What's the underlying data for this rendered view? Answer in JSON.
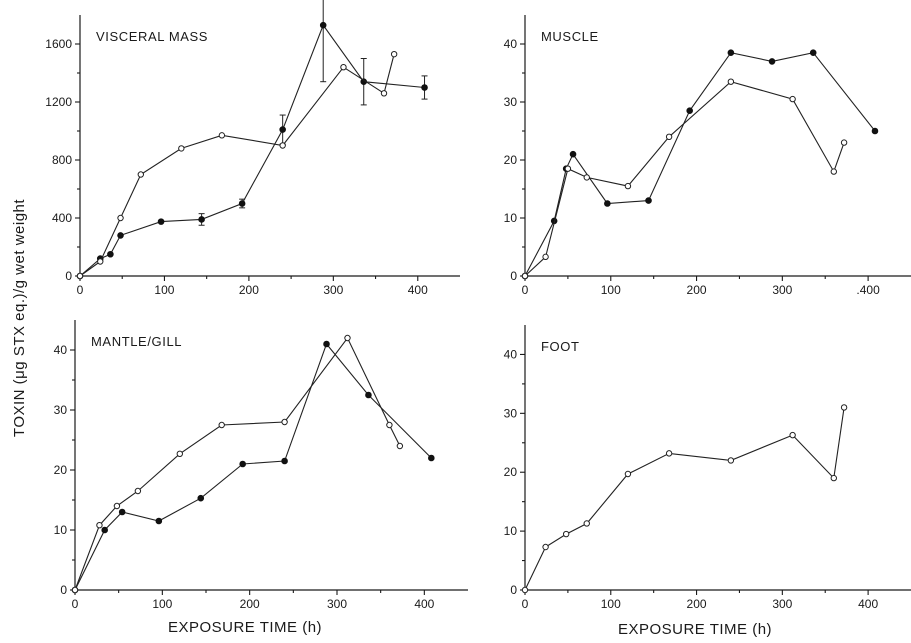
{
  "figure": {
    "ylabel": "TOXIN (μg STX eq.)/g wet weight",
    "xlabel_left": "EXPOSURE TIME (h)",
    "xlabel_right": "EXPOSURE TIME (h)"
  },
  "chart_data": [
    {
      "type": "line",
      "title": "VISCERAL MASS",
      "xlabel": "EXPOSURE TIME (h)",
      "ylabel": "TOXIN (μg STX eq.)/g wet weight",
      "xlim": [
        0,
        450
      ],
      "ylim": [
        0,
        1800
      ],
      "xticks": [
        0,
        100,
        200,
        300,
        400
      ],
      "xtick_labels": [
        "0",
        "100",
        "200",
        "300",
        "400"
      ],
      "yticks": [
        0,
        400,
        800,
        1200,
        1600
      ],
      "ytick_labels": [
        "0",
        "400",
        "800",
        "1200",
        "1600"
      ],
      "series": [
        {
          "marker": "filled",
          "x": [
            0,
            24,
            36,
            48,
            96,
            144,
            192,
            240,
            288,
            336,
            408
          ],
          "y": [
            0,
            120,
            150,
            280,
            375,
            390,
            500,
            1010,
            1730,
            1340,
            1300
          ],
          "err": [
            0,
            0,
            0,
            0,
            0,
            40,
            30,
            100,
            390,
            160,
            80
          ]
        },
        {
          "marker": "open",
          "x": [
            0,
            24,
            48,
            72,
            120,
            168,
            240,
            312,
            360,
            372
          ],
          "y": [
            0,
            100,
            400,
            700,
            880,
            970,
            900,
            1440,
            1260,
            1530
          ]
        }
      ]
    },
    {
      "type": "line",
      "title": "MUSCLE",
      "xlim": [
        0,
        450
      ],
      "ylim": [
        0,
        45
      ],
      "xticks": [
        0,
        100,
        200,
        300,
        400
      ],
      "xtick_labels": [
        "0",
        "100",
        "200",
        "300",
        ".400"
      ],
      "yticks": [
        0,
        10,
        20,
        30,
        40
      ],
      "ytick_labels": [
        "0",
        "10",
        "20",
        "30",
        "40"
      ],
      "series": [
        {
          "marker": "filled",
          "x": [
            0,
            34,
            48,
            56,
            96,
            144,
            192,
            240,
            288,
            336,
            408
          ],
          "y": [
            0,
            9.5,
            18.5,
            21,
            12.5,
            13,
            28.5,
            38.5,
            37,
            38.5,
            25
          ]
        },
        {
          "marker": "open",
          "x": [
            0,
            24,
            50,
            72,
            120,
            168,
            240,
            312,
            360,
            372
          ],
          "y": [
            0,
            3.3,
            18.5,
            17,
            15.5,
            24,
            33.5,
            30.5,
            18,
            23
          ]
        }
      ]
    },
    {
      "type": "line",
      "title": "MANTLE/GILL",
      "xlim": [
        0,
        450
      ],
      "ylim": [
        0,
        45
      ],
      "xticks": [
        0,
        100,
        200,
        300,
        400
      ],
      "xtick_labels": [
        "0",
        "100",
        "200",
        "300",
        "400"
      ],
      "yticks": [
        0,
        10,
        20,
        30,
        40
      ],
      "ytick_labels": [
        "0",
        "10",
        "20",
        "30",
        "40"
      ],
      "series": [
        {
          "marker": "filled",
          "x": [
            0,
            34,
            54,
            96,
            144,
            192,
            240,
            288,
            336,
            408
          ],
          "y": [
            0,
            10,
            13,
            11.5,
            15.3,
            21,
            21.5,
            41,
            32.5,
            22
          ]
        },
        {
          "marker": "open",
          "x": [
            0,
            28,
            48,
            72,
            120,
            168,
            240,
            312,
            360,
            372
          ],
          "y": [
            0,
            10.8,
            14,
            16.5,
            22.7,
            27.5,
            28,
            42,
            27.5,
            24
          ]
        }
      ]
    },
    {
      "type": "line",
      "title": "FOOT",
      "xlim": [
        0,
        450
      ],
      "ylim": [
        0,
        45
      ],
      "xticks": [
        0,
        100,
        200,
        300,
        400
      ],
      "xtick_labels": [
        "0",
        "100",
        "200",
        "300",
        "400"
      ],
      "yticks": [
        0,
        10,
        20,
        30,
        40
      ],
      "ytick_labels": [
        "0",
        "10",
        "20",
        "30",
        "40"
      ],
      "series": [
        {
          "marker": "open",
          "x": [
            0,
            24,
            48,
            72,
            120,
            168,
            240,
            312,
            360,
            372
          ],
          "y": [
            0,
            7.3,
            9.5,
            11.3,
            19.7,
            23.2,
            22,
            26.3,
            19,
            31
          ]
        }
      ]
    }
  ]
}
